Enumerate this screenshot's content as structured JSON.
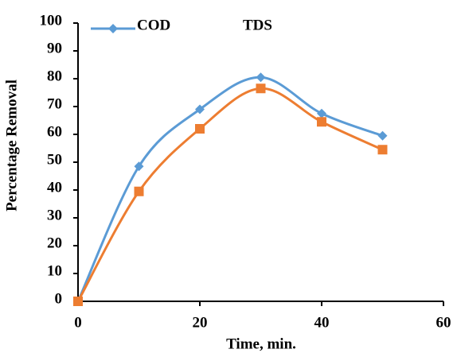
{
  "chart_data": {
    "type": "line",
    "x_label": "Time, min.",
    "y_label": "Percentage Removal",
    "x": [
      0,
      10,
      20,
      30,
      40,
      50
    ],
    "series": [
      {
        "name": "COD",
        "color": "#5b9bd5",
        "marker": "diamond",
        "values": [
          0,
          48.5,
          69,
          80.5,
          67.5,
          59.5
        ]
      },
      {
        "name": "TDS",
        "color": "#ed7d31",
        "marker": "square",
        "values": [
          0,
          39.5,
          62,
          76.5,
          64.5,
          54.5
        ]
      }
    ],
    "xlim": [
      0,
      60
    ],
    "xticks": [
      0,
      20,
      40,
      60
    ],
    "ylim": [
      0,
      100
    ],
    "yticks": [
      0,
      10,
      20,
      30,
      40,
      50,
      60,
      70,
      80,
      90,
      100
    ],
    "smooth": true
  }
}
